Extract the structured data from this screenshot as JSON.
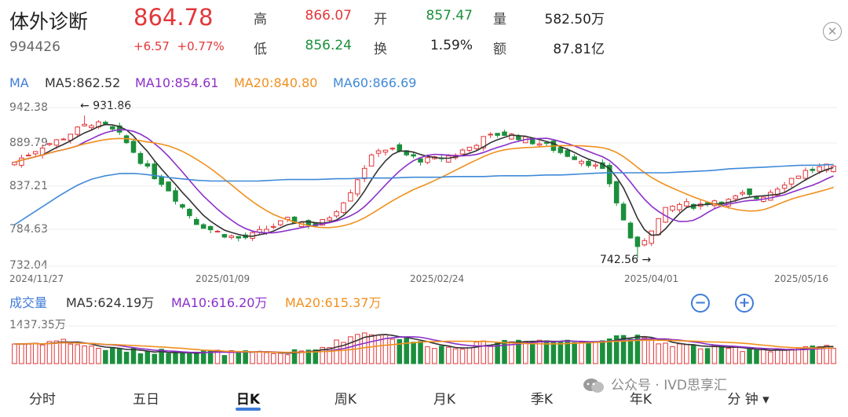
{
  "header": {
    "name": "体外诊断",
    "code": "994426",
    "price": "864.78",
    "change": "+6.57",
    "change_pct": "+0.77%",
    "quote": [
      {
        "label": "高",
        "value": "866.07",
        "color": "#e2373a"
      },
      {
        "label": "开",
        "value": "857.47",
        "color": "#1b8f3c"
      },
      {
        "label": "量",
        "value": "582.50万",
        "color": "#222222"
      },
      {
        "label": "低",
        "value": "856.24",
        "color": "#1b8f3c"
      },
      {
        "label": "换",
        "value": "1.59%",
        "color": "#222222"
      },
      {
        "label": "额",
        "value": "87.81亿",
        "color": "#222222"
      }
    ]
  },
  "close_icon": "close-icon",
  "ma_legend": [
    {
      "text": "MA",
      "color": "#3f7cd8"
    },
    {
      "text": "MA5:862.52",
      "color": "#333333"
    },
    {
      "text": "MA10:854.61",
      "color": "#8b2fc9"
    },
    {
      "text": "MA20:840.80",
      "color": "#f0901e"
    },
    {
      "text": "MA60:866.69",
      "color": "#3f8ad8"
    }
  ],
  "price_axis": [
    "942.38",
    "889.79",
    "837.21",
    "784.63",
    "732.04"
  ],
  "annotations": {
    "high": "931.86",
    "low": "742.56"
  },
  "dates": [
    "2024/11/27",
    "2025/01/09",
    "2025/02/24",
    "2025/04/01",
    "2025/05/16"
  ],
  "vol_legend": [
    {
      "text": "成交量",
      "color": "#3f7cd8"
    },
    {
      "text": "MA5:624.19万",
      "color": "#333333"
    },
    {
      "text": "MA10:616.20万",
      "color": "#8b2fc9"
    },
    {
      "text": "MA20:615.37万",
      "color": "#f0901e"
    }
  ],
  "vol_axis_max": "1437.35万",
  "zoom": {
    "out": "−",
    "in": "+"
  },
  "tabs": [
    "分时",
    "五日",
    "日K",
    "周K",
    "月K",
    "季K",
    "年K",
    "分 钟 ▾"
  ],
  "active_tab": "日K",
  "watermark": "公众号 · IVD思享汇",
  "colors": {
    "up": "#e2373a",
    "down": "#1b8f3c",
    "ma5": "#333333",
    "ma10": "#8b2fc9",
    "ma20": "#f0901e",
    "ma60": "#3f8ad8"
  },
  "chart_data": {
    "type": "candlestick",
    "price_range": [
      732.04,
      942.38
    ],
    "volume_max": 1437.35,
    "volume_unit": "万",
    "marked_high": 931.86,
    "marked_low": 742.56,
    "last": {
      "open": 857.47,
      "high": 866.07,
      "low": 856.24,
      "close": 864.78,
      "volume": 582.5
    },
    "date_ticks": [
      "2024/11/27",
      "2025/01/09",
      "2025/02/24",
      "2025/04/01",
      "2025/05/16"
    ],
    "close_anchors": [
      870,
      882,
      893,
      900,
      912,
      922,
      918,
      905,
      880,
      855,
      838,
      812,
      790,
      780,
      773,
      768,
      776,
      785,
      793,
      790,
      786,
      802,
      827,
      862,
      888,
      886,
      878,
      872,
      875,
      880,
      890,
      902,
      908,
      905,
      898,
      893,
      883,
      876,
      868,
      855,
      800,
      752,
      782,
      808,
      815,
      812,
      820,
      818,
      827,
      822,
      833,
      846,
      857,
      862,
      865
    ],
    "ma60_anchors": [
      787,
      800,
      813,
      826,
      838,
      847,
      852,
      855,
      855,
      853,
      850,
      848,
      846,
      845,
      845,
      845,
      845,
      846,
      847,
      847,
      847,
      848,
      848,
      849,
      849,
      849,
      850,
      850,
      850,
      851,
      851,
      851,
      852,
      852,
      852,
      853,
      853,
      854,
      855,
      856,
      856,
      856,
      856,
      856,
      857,
      858,
      859,
      861,
      862,
      863,
      864,
      865,
      866,
      866,
      867
    ],
    "volume_anchors": [
      760,
      770,
      800,
      900,
      760,
      640,
      560,
      520,
      470,
      460,
      470,
      480,
      450,
      440,
      410,
      390,
      380,
      390,
      410,
      450,
      560,
      760,
      980,
      1200,
      1130,
      1000,
      880,
      760,
      640,
      620,
      690,
      760,
      830,
      880,
      900,
      880,
      860,
      820,
      900,
      920,
      1100,
      1000,
      830,
      760,
      700,
      630,
      600,
      570,
      560,
      560,
      540,
      540,
      560,
      600,
      582
    ]
  }
}
